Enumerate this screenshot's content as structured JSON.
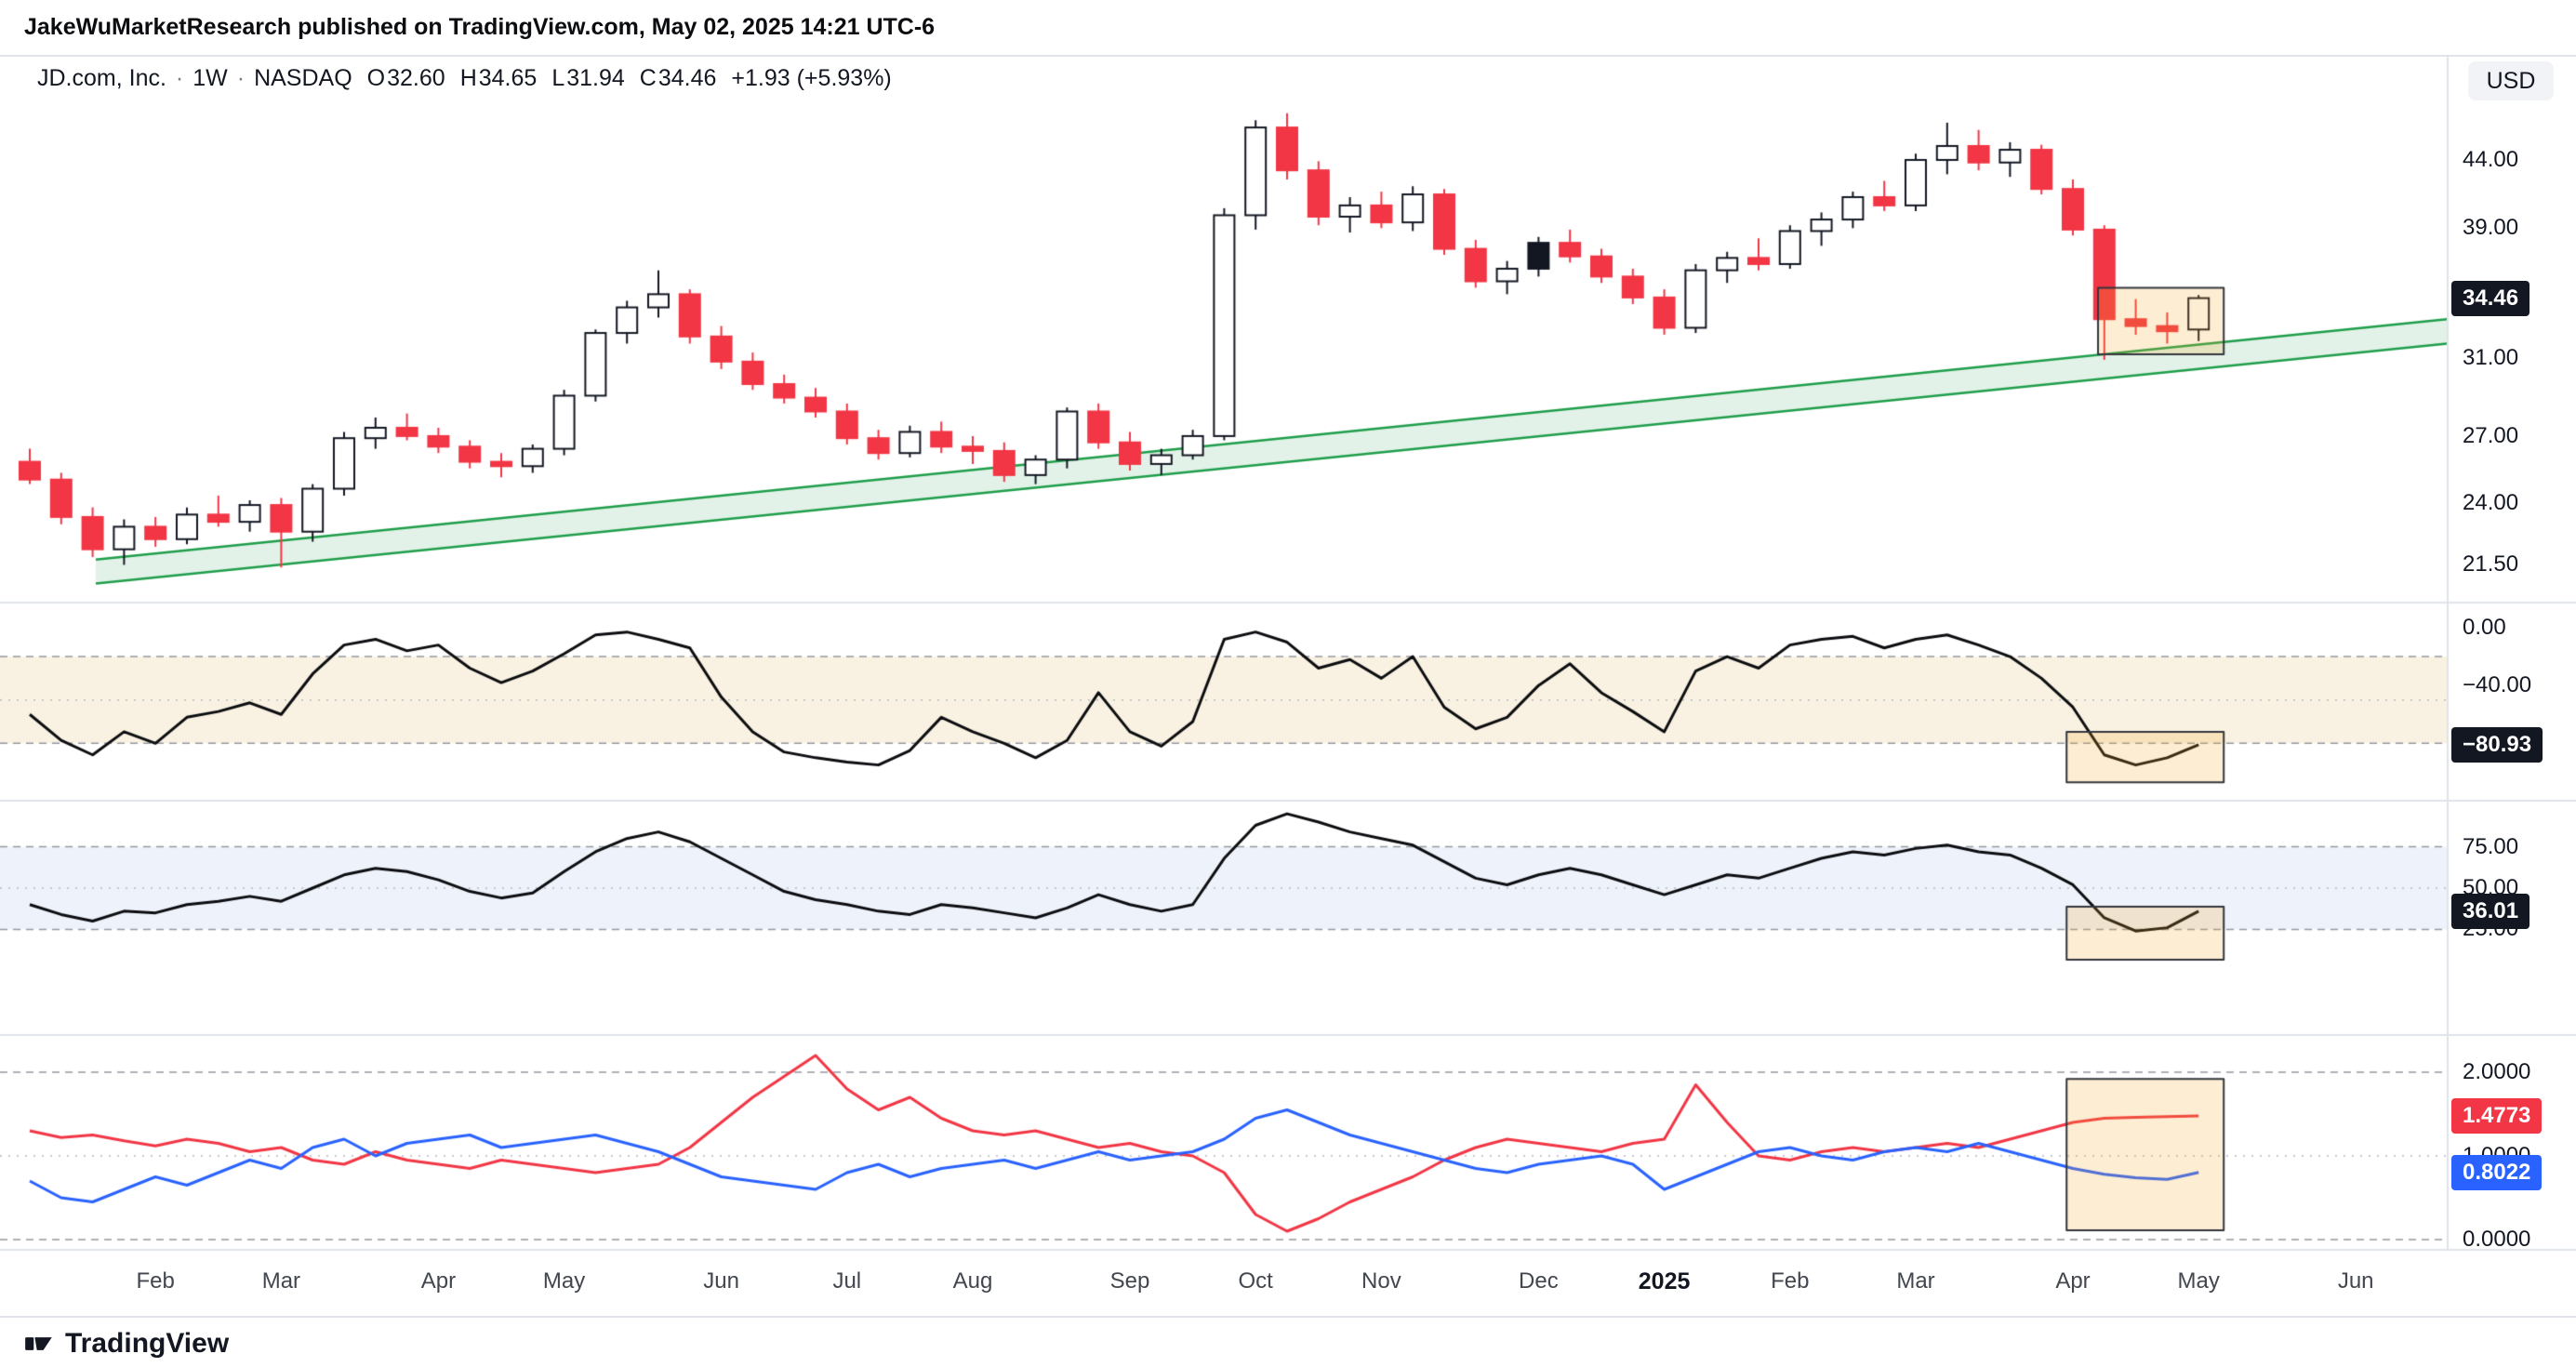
{
  "header": {
    "publisher_line": "JakeWuMarketResearch published on TradingView.com, May 02, 2025 14:21 UTC-6"
  },
  "legend": {
    "symbol": "JD.com, Inc.",
    "sep": "·",
    "interval": "1W",
    "exchange": "NASDAQ",
    "open_label": "O",
    "open": "32.60",
    "high_label": "H",
    "high": "34.65",
    "low_label": "L",
    "low": "31.94",
    "close_label": "C",
    "close": "34.46",
    "change": "+1.93 (+5.93%)"
  },
  "axis": {
    "currency": "USD"
  },
  "footer": {
    "brand": "TradingView"
  },
  "colors": {
    "up_fill": "#ffffff",
    "up_border": "#131722",
    "down": "#f23645",
    "black_candle": "#131722",
    "wick_dark": "#131722",
    "channel": "#1e9e4a",
    "channel_fill": "rgba(30,158,74,0.13)",
    "indicator_line": "#0c0d10",
    "red_line": "#f23645",
    "blue_line": "#2962ff",
    "band_beige": "rgba(222,184,96,0.18)",
    "band_blue": "rgba(121,153,219,0.13)",
    "box_fill": "rgba(245,166,35,0.20)",
    "box_border": "#33363d",
    "grid_dash": "#9598a1",
    "grid_dot": "#b6b9c2",
    "separator": "#e0e3eb"
  },
  "chart_data": {
    "type": "candlestick_multi_pane",
    "symbol": "JD.com, Inc.",
    "interval": "1W",
    "exchange": "NASDAQ",
    "scale": "log",
    "x_ticks": [
      {
        "label": "Feb",
        "index": 4
      },
      {
        "label": "Mar",
        "index": 8
      },
      {
        "label": "Apr",
        "index": 13
      },
      {
        "label": "May",
        "index": 17
      },
      {
        "label": "Jun",
        "index": 22
      },
      {
        "label": "Jul",
        "index": 26
      },
      {
        "label": "Aug",
        "index": 30
      },
      {
        "label": "Sep",
        "index": 35
      },
      {
        "label": "Oct",
        "index": 39
      },
      {
        "label": "Nov",
        "index": 43
      },
      {
        "label": "Dec",
        "index": 48
      },
      {
        "label": "2025",
        "index": 52,
        "emphasis": true
      },
      {
        "label": "Feb",
        "index": 56
      },
      {
        "label": "Mar",
        "index": 60
      },
      {
        "label": "Apr",
        "index": 65
      },
      {
        "label": "May",
        "index": 69
      },
      {
        "label": "Jun",
        "index": 74
      }
    ],
    "price_pane": {
      "type": "candlestick",
      "y_ticks": [
        {
          "label": "44.00",
          "value": 44
        },
        {
          "label": "39.00",
          "value": 39
        },
        {
          "label": "31.00",
          "value": 31
        },
        {
          "label": "27.00",
          "value": 27
        },
        {
          "label": "24.00",
          "value": 24
        },
        {
          "label": "21.50",
          "value": 21.5
        }
      ],
      "last_price": 34.46,
      "last_price_label": "34.46",
      "black_indices": [
        48
      ],
      "trend_channel": {
        "i0": 2.1,
        "i1": 76.9,
        "upper_p0": 21.7,
        "upper_p1": 33.2,
        "lower_p0": 20.8,
        "lower_p1": 31.8
      },
      "highlight_box": {
        "i0": 65.8,
        "i1": 69.8,
        "p0": 35.1,
        "p1": 31.2
      },
      "candles": [
        [
          25.8,
          26.4,
          24.8,
          25.0
        ],
        [
          25.0,
          25.3,
          23.1,
          23.4
        ],
        [
          23.4,
          23.8,
          21.8,
          22.1
        ],
        [
          22.1,
          23.3,
          21.5,
          23.0
        ],
        [
          23.0,
          23.4,
          22.2,
          22.5
        ],
        [
          22.5,
          23.8,
          22.3,
          23.5
        ],
        [
          23.5,
          24.3,
          23.0,
          23.2
        ],
        [
          23.2,
          24.1,
          22.8,
          23.9
        ],
        [
          23.9,
          24.2,
          21.4,
          22.8
        ],
        [
          22.8,
          24.8,
          22.4,
          24.6
        ],
        [
          24.6,
          27.2,
          24.3,
          26.9
        ],
        [
          26.9,
          27.9,
          26.4,
          27.4
        ],
        [
          27.4,
          28.1,
          26.8,
          27.0
        ],
        [
          27.0,
          27.4,
          26.2,
          26.5
        ],
        [
          26.5,
          26.8,
          25.5,
          25.8
        ],
        [
          25.8,
          26.2,
          25.1,
          25.6
        ],
        [
          25.6,
          26.6,
          25.3,
          26.4
        ],
        [
          26.4,
          29.3,
          26.1,
          29.0
        ],
        [
          29.0,
          32.6,
          28.7,
          32.4
        ],
        [
          32.4,
          34.3,
          31.8,
          33.9
        ],
        [
          33.9,
          36.2,
          33.3,
          34.7
        ],
        [
          34.7,
          35.0,
          31.8,
          32.2
        ],
        [
          32.2,
          32.8,
          30.4,
          30.8
        ],
        [
          30.8,
          31.3,
          29.3,
          29.6
        ],
        [
          29.6,
          30.1,
          28.6,
          28.9
        ],
        [
          28.9,
          29.4,
          27.9,
          28.2
        ],
        [
          28.2,
          28.6,
          26.6,
          26.9
        ],
        [
          26.9,
          27.3,
          25.9,
          26.2
        ],
        [
          26.2,
          27.5,
          26.0,
          27.2
        ],
        [
          27.2,
          27.7,
          26.2,
          26.5
        ],
        [
          26.5,
          27.0,
          25.7,
          26.3
        ],
        [
          26.3,
          26.7,
          24.9,
          25.2
        ],
        [
          25.2,
          26.1,
          24.8,
          25.9
        ],
        [
          25.9,
          28.4,
          25.5,
          28.2
        ],
        [
          28.2,
          28.6,
          26.4,
          26.7
        ],
        [
          26.7,
          27.2,
          25.4,
          25.7
        ],
        [
          25.7,
          26.4,
          25.2,
          26.1
        ],
        [
          26.1,
          27.3,
          25.9,
          27.0
        ],
        [
          27.0,
          40.4,
          26.8,
          39.9
        ],
        [
          39.9,
          47.2,
          38.9,
          46.6
        ],
        [
          46.6,
          47.8,
          42.5,
          43.2
        ],
        [
          43.2,
          43.9,
          39.2,
          39.8
        ],
        [
          39.8,
          41.2,
          38.7,
          40.6
        ],
        [
          40.6,
          41.6,
          39.0,
          39.4
        ],
        [
          39.4,
          42.0,
          38.8,
          41.4
        ],
        [
          41.4,
          41.8,
          37.2,
          37.6
        ],
        [
          37.6,
          38.2,
          35.1,
          35.5
        ],
        [
          35.5,
          36.8,
          34.7,
          36.3
        ],
        [
          36.3,
          38.4,
          35.8,
          38.0
        ],
        [
          38.0,
          38.9,
          36.7,
          37.1
        ],
        [
          37.1,
          37.6,
          35.4,
          35.8
        ],
        [
          35.8,
          36.3,
          34.1,
          34.5
        ],
        [
          34.5,
          35.0,
          32.3,
          32.7
        ],
        [
          32.7,
          36.6,
          32.4,
          36.2
        ],
        [
          36.2,
          37.4,
          35.4,
          37.0
        ],
        [
          37.0,
          38.3,
          36.2,
          36.6
        ],
        [
          36.6,
          39.2,
          36.3,
          38.8
        ],
        [
          38.8,
          40.1,
          37.8,
          39.6
        ],
        [
          39.6,
          41.6,
          39.0,
          41.2
        ],
        [
          41.2,
          42.4,
          40.2,
          40.6
        ],
        [
          40.6,
          44.5,
          40.2,
          44.0
        ],
        [
          44.0,
          47.0,
          42.9,
          45.1
        ],
        [
          45.1,
          46.4,
          43.2,
          43.8
        ],
        [
          43.8,
          45.4,
          42.7,
          44.8
        ],
        [
          44.8,
          45.2,
          41.4,
          41.8
        ],
        [
          41.8,
          42.5,
          38.5,
          38.9
        ],
        [
          38.9,
          39.2,
          30.9,
          33.2
        ],
        [
          33.2,
          34.4,
          32.3,
          32.8
        ],
        [
          32.8,
          33.6,
          31.8,
          32.5
        ],
        [
          32.6,
          34.65,
          31.94,
          34.46
        ]
      ]
    },
    "williams_pane": {
      "type": "line",
      "current": -80.93,
      "current_label": "−80.93",
      "bands": {
        "upper": -20,
        "middle": -50,
        "lower": -80
      },
      "y_ticks": [
        {
          "label": "0.00",
          "value": 0
        },
        {
          "label": "−40.00",
          "value": -40
        }
      ],
      "highlight_box": {
        "i0": 64.8,
        "i1": 69.8,
        "v0": -72,
        "v1": -107
      },
      "values": [
        -60,
        -78,
        -88,
        -72,
        -80,
        -62,
        -58,
        -52,
        -60,
        -32,
        -12,
        -8,
        -16,
        -12,
        -28,
        -38,
        -30,
        -18,
        -5,
        -3,
        -8,
        -14,
        -48,
        -72,
        -86,
        -90,
        -93,
        -95,
        -85,
        -62,
        -72,
        -80,
        -90,
        -78,
        -45,
        -72,
        -82,
        -65,
        -8,
        -3,
        -10,
        -28,
        -22,
        -35,
        -20,
        -55,
        -70,
        -62,
        -40,
        -25,
        -45,
        -58,
        -72,
        -30,
        -20,
        -28,
        -12,
        -8,
        -6,
        -14,
        -8,
        -5,
        -12,
        -20,
        -35,
        -55,
        -88,
        -95,
        -90,
        -81
      ]
    },
    "oscillator_pane": {
      "type": "line",
      "current": 36.01,
      "current_label": "36.01",
      "bands": {
        "upper": 75,
        "middle": 50,
        "lower": 25
      },
      "y_ticks": [
        {
          "label": "75.00",
          "value": 75
        },
        {
          "label": "50.00",
          "value": 50
        },
        {
          "label": "25.00",
          "value": 25
        }
      ],
      "highlight_box": {
        "i0": 64.8,
        "i1": 69.8,
        "v0": 38.7,
        "v1": 6.6
      },
      "values": [
        40,
        34,
        30,
        36,
        35,
        40,
        42,
        45,
        42,
        50,
        58,
        62,
        60,
        55,
        48,
        44,
        47,
        60,
        72,
        80,
        84,
        78,
        68,
        58,
        48,
        43,
        40,
        36,
        34,
        40,
        38,
        35,
        32,
        38,
        46,
        40,
        36,
        40,
        68,
        88,
        95,
        90,
        84,
        80,
        76,
        66,
        56,
        52,
        58,
        62,
        58,
        52,
        46,
        52,
        58,
        56,
        62,
        68,
        72,
        70,
        74,
        76,
        72,
        70,
        62,
        52,
        32,
        24,
        26,
        36
      ]
    },
    "ratio_pane": {
      "type": "line",
      "levels": {
        "upper": 2,
        "middle": 1,
        "lower": 0
      },
      "y_ticks": [
        {
          "label": "2.0000",
          "value": 2
        },
        {
          "label": "1.0000",
          "value": 1
        },
        {
          "label": "0.0000",
          "value": 0
        }
      ],
      "highlight_box": {
        "i0": 64.8,
        "i1": 69.8,
        "v0": 1.92,
        "v1": 0.11
      },
      "series": [
        {
          "name": "red-line",
          "color_key": "red_line",
          "current": 1.4773,
          "current_label": "1.4773",
          "values": [
            1.3,
            1.22,
            1.25,
            1.18,
            1.12,
            1.2,
            1.15,
            1.05,
            1.1,
            0.95,
            0.9,
            1.05,
            0.95,
            0.9,
            0.85,
            0.95,
            0.9,
            0.85,
            0.8,
            0.85,
            0.9,
            1.1,
            1.4,
            1.7,
            1.95,
            2.2,
            1.8,
            1.55,
            1.7,
            1.45,
            1.3,
            1.25,
            1.3,
            1.2,
            1.1,
            1.15,
            1.05,
            1.0,
            0.8,
            0.3,
            0.1,
            0.25,
            0.45,
            0.6,
            0.75,
            0.95,
            1.1,
            1.2,
            1.15,
            1.1,
            1.05,
            1.15,
            1.2,
            1.85,
            1.4,
            1.0,
            0.95,
            1.05,
            1.1,
            1.05,
            1.1,
            1.15,
            1.1,
            1.2,
            1.3,
            1.4,
            1.45,
            1.46,
            1.47,
            1.4773
          ]
        },
        {
          "name": "blue-line",
          "color_key": "blue_line",
          "current": 0.8022,
          "current_label": "0.8022",
          "values": [
            0.7,
            0.5,
            0.45,
            0.6,
            0.75,
            0.65,
            0.8,
            0.95,
            0.85,
            1.1,
            1.2,
            1.0,
            1.15,
            1.2,
            1.25,
            1.1,
            1.15,
            1.2,
            1.25,
            1.15,
            1.05,
            0.9,
            0.75,
            0.7,
            0.65,
            0.6,
            0.8,
            0.9,
            0.75,
            0.85,
            0.9,
            0.95,
            0.85,
            0.95,
            1.05,
            0.95,
            1.0,
            1.05,
            1.2,
            1.45,
            1.55,
            1.4,
            1.25,
            1.15,
            1.05,
            0.95,
            0.85,
            0.8,
            0.9,
            0.95,
            1.0,
            0.9,
            0.6,
            0.75,
            0.9,
            1.05,
            1.1,
            1.0,
            0.95,
            1.05,
            1.1,
            1.05,
            1.15,
            1.05,
            0.95,
            0.85,
            0.78,
            0.74,
            0.72,
            0.8022
          ]
        }
      ]
    }
  }
}
